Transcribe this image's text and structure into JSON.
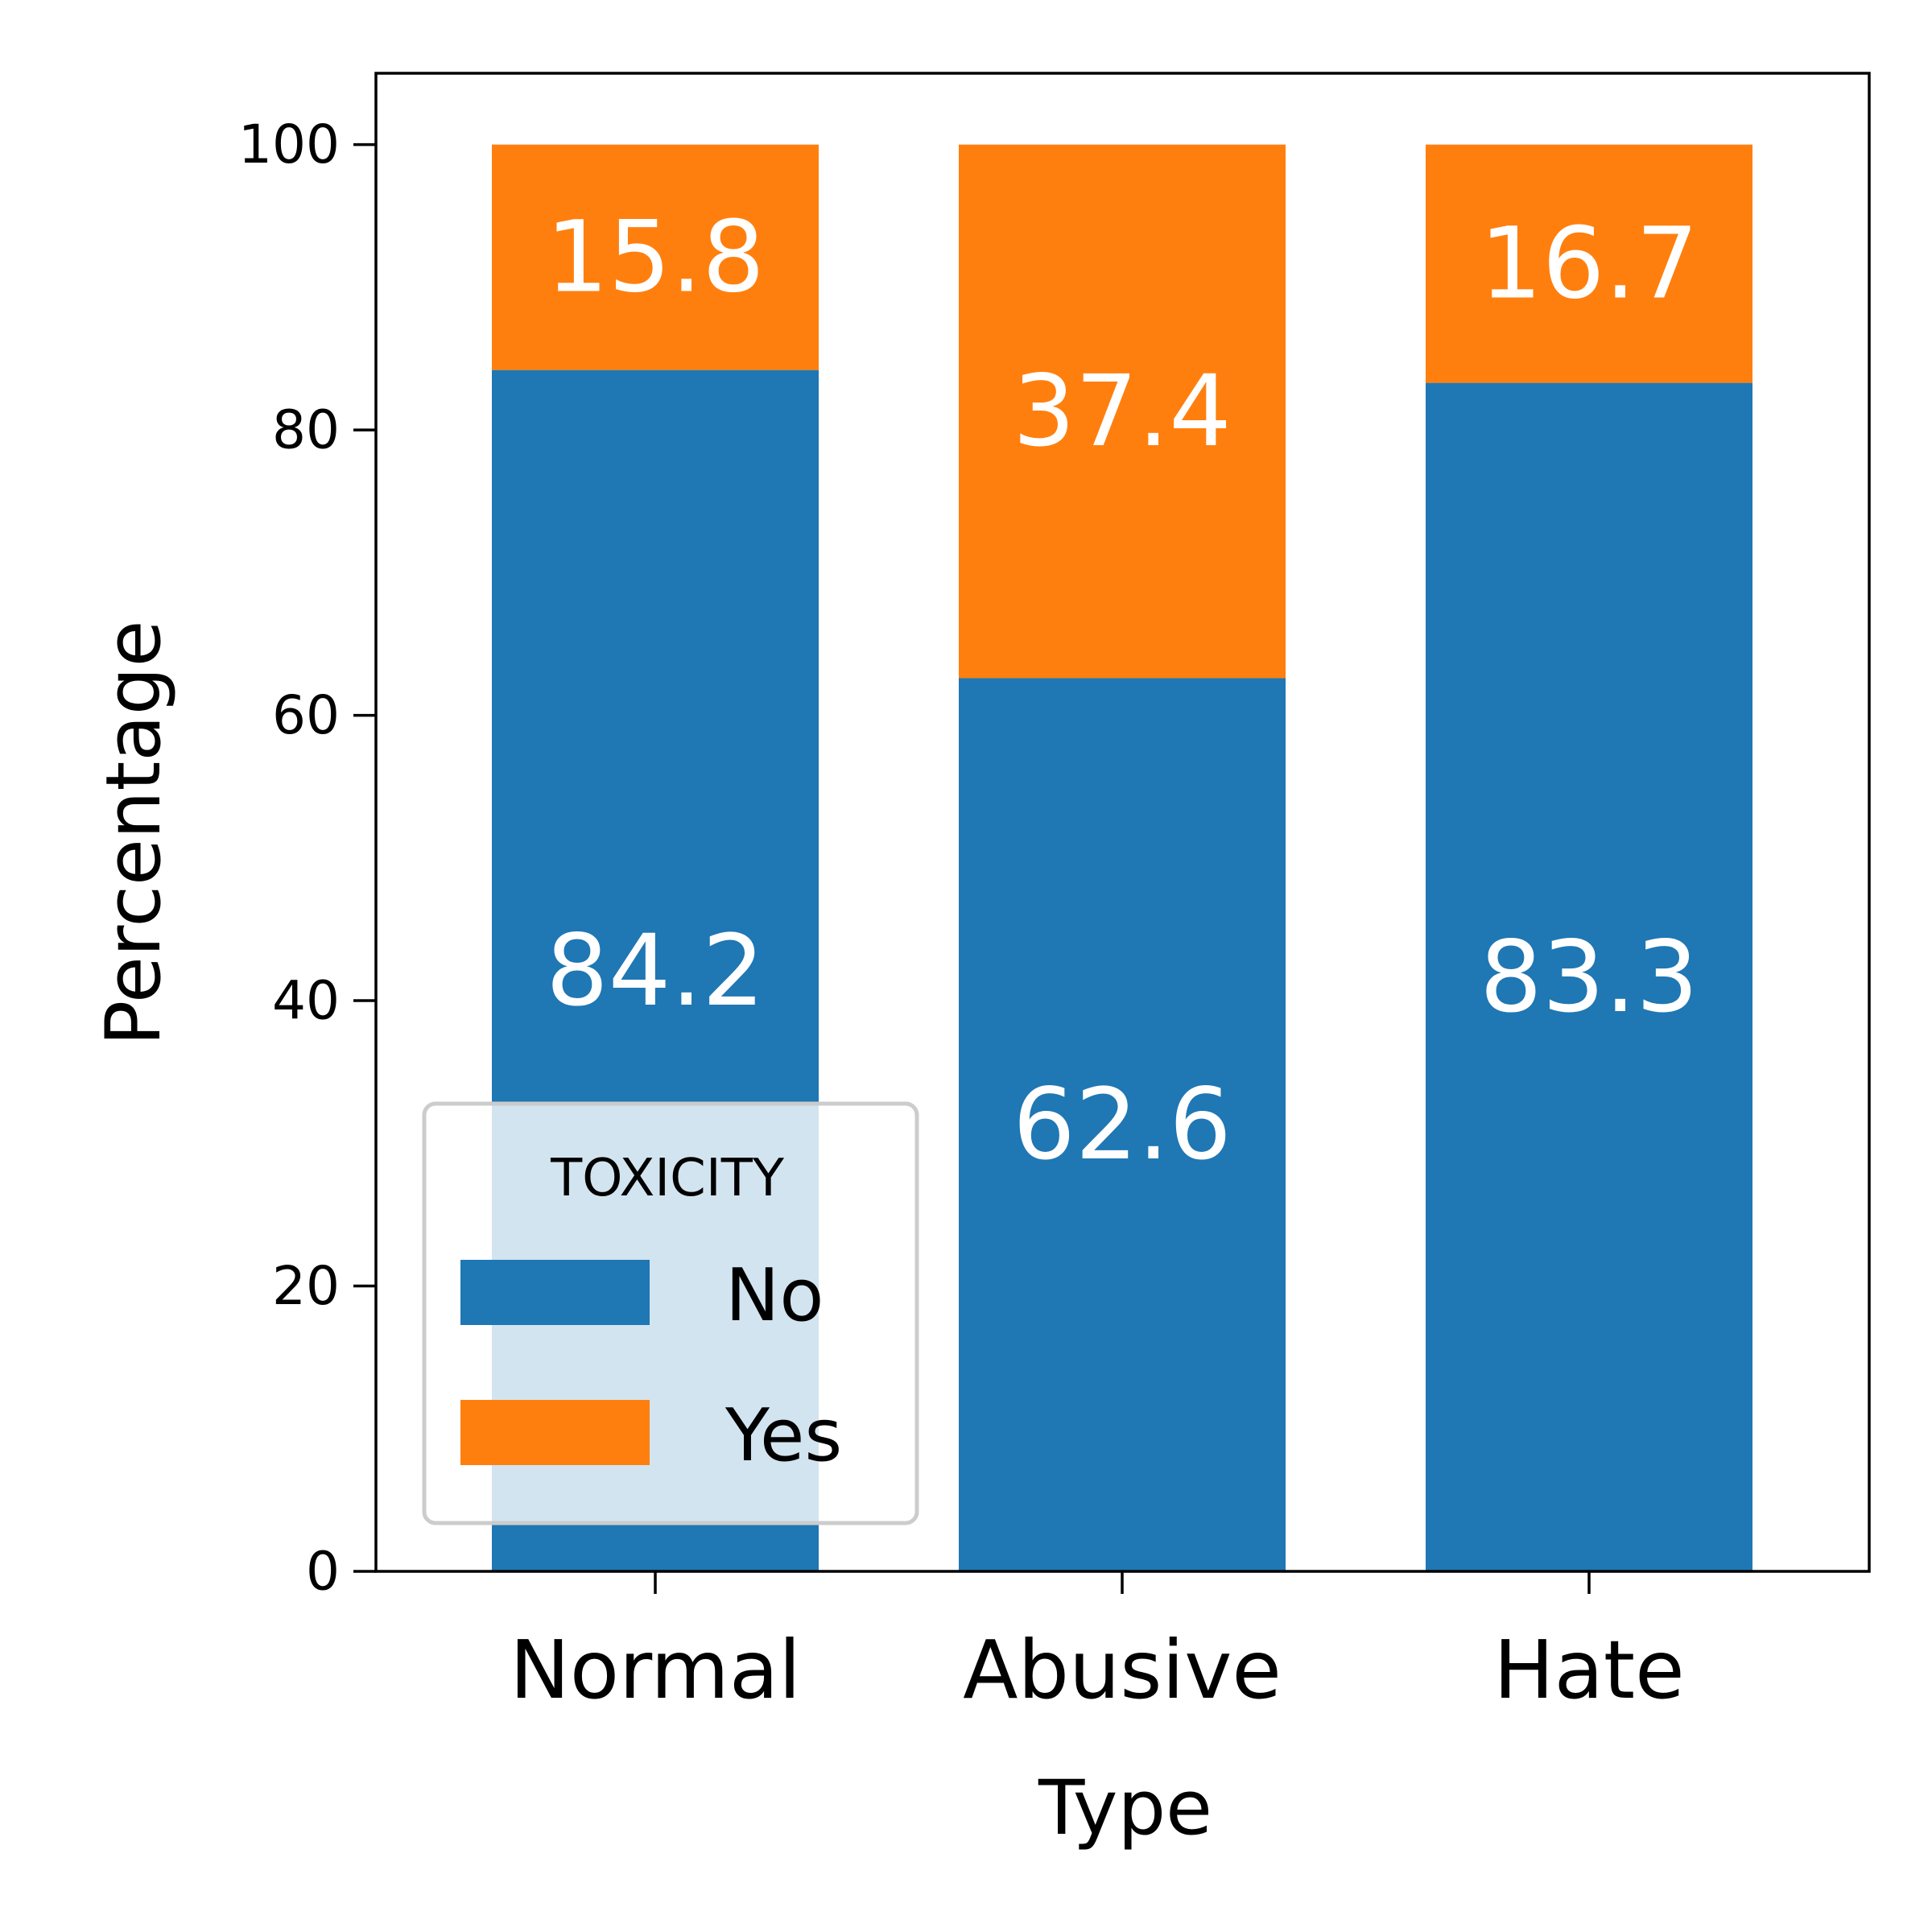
{
  "chart_data": {
    "type": "bar",
    "stacked": true,
    "title": "",
    "xlabel": "Type",
    "ylabel": "Percentage",
    "categories": [
      "Normal",
      "Abusive",
      "Hate"
    ],
    "series": [
      {
        "name": "No",
        "color": "#1f77b4",
        "values": [
          84.2,
          62.6,
          83.3
        ],
        "labels": [
          "84.2",
          "62.6",
          "83.3"
        ]
      },
      {
        "name": "Yes",
        "color": "#ff7f0e",
        "values": [
          15.8,
          37.4,
          16.7
        ],
        "labels": [
          "15.8",
          "37.4",
          "16.7"
        ]
      }
    ],
    "ylim": [
      0,
      105
    ],
    "yticks": [
      0,
      20,
      40,
      60,
      80,
      100
    ],
    "ytick_labels": [
      "0",
      "20",
      "40",
      "60",
      "80",
      "100"
    ],
    "grid": false,
    "legend": {
      "title": "TOXICITY",
      "placement": "lower-left",
      "entries": [
        "No",
        "Yes"
      ]
    }
  }
}
